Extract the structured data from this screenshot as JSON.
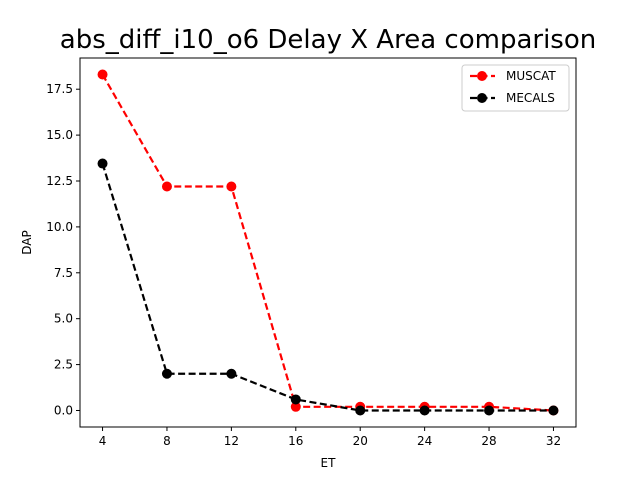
{
  "chart_data": {
    "type": "line",
    "title": "abs_diff_i10_o6 Delay X Area comparison",
    "xlabel": "ET",
    "ylabel": "DAP",
    "x": [
      4,
      8,
      12,
      16,
      20,
      24,
      28,
      32
    ],
    "xticks": [
      "4",
      "8",
      "12",
      "16",
      "20",
      "24",
      "28",
      "32"
    ],
    "yticks": [
      "0.0",
      "2.5",
      "5.0",
      "7.5",
      "10.0",
      "12.5",
      "15.0",
      "17.5"
    ],
    "xlim": [
      2.6,
      33.4
    ],
    "ylim": [
      -0.9,
      19.2
    ],
    "grid": false,
    "legend_position": "top-right",
    "series": [
      {
        "name": "MUSCAT",
        "color": "#ff0000",
        "style": "dashed",
        "marker": "circle",
        "values": [
          18.3,
          12.2,
          12.2,
          0.2,
          0.2,
          0.2,
          0.2,
          0.0
        ]
      },
      {
        "name": "MECALS",
        "color": "#000000",
        "style": "dashed",
        "marker": "circle",
        "values": [
          13.45,
          2.0,
          2.0,
          0.6,
          0.0,
          0.0,
          0.0,
          0.0
        ]
      }
    ]
  }
}
